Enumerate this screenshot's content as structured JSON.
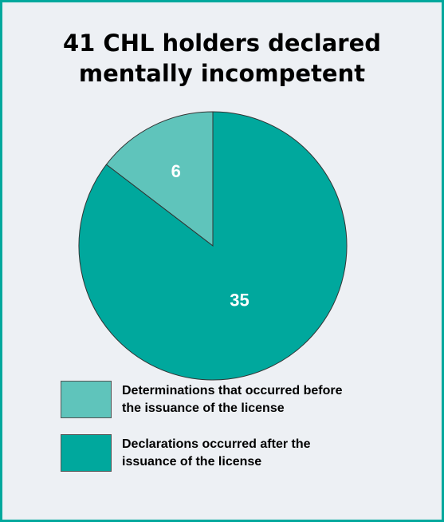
{
  "chart_data": {
    "type": "pie",
    "title": "41 CHL holders declared mentally incompetent",
    "title_lines": [
      "41 CHL holders declared",
      "mentally incompetent"
    ],
    "series": [
      {
        "name": "Determinations that occurred before the issuance of the license",
        "legend_lines": [
          "Determinations that occurred before",
          "the issuance of the license"
        ],
        "value": 6,
        "label": "6",
        "color": "#5fc4bb"
      },
      {
        "name": "Declarations occurred after the issuance of the license",
        "legend_lines": [
          "Declarations occurred after the",
          "issuance of the license"
        ],
        "value": 35,
        "label": "35",
        "color": "#00a89d"
      }
    ],
    "start_angle": "12 o'clock",
    "direction": "counterclockwise",
    "legend_placement": "bottom-left"
  },
  "colors": {
    "border": "#00a89d",
    "background": "#edf0f4",
    "slice_outline": "#333333",
    "data_label": "#ffffff"
  }
}
